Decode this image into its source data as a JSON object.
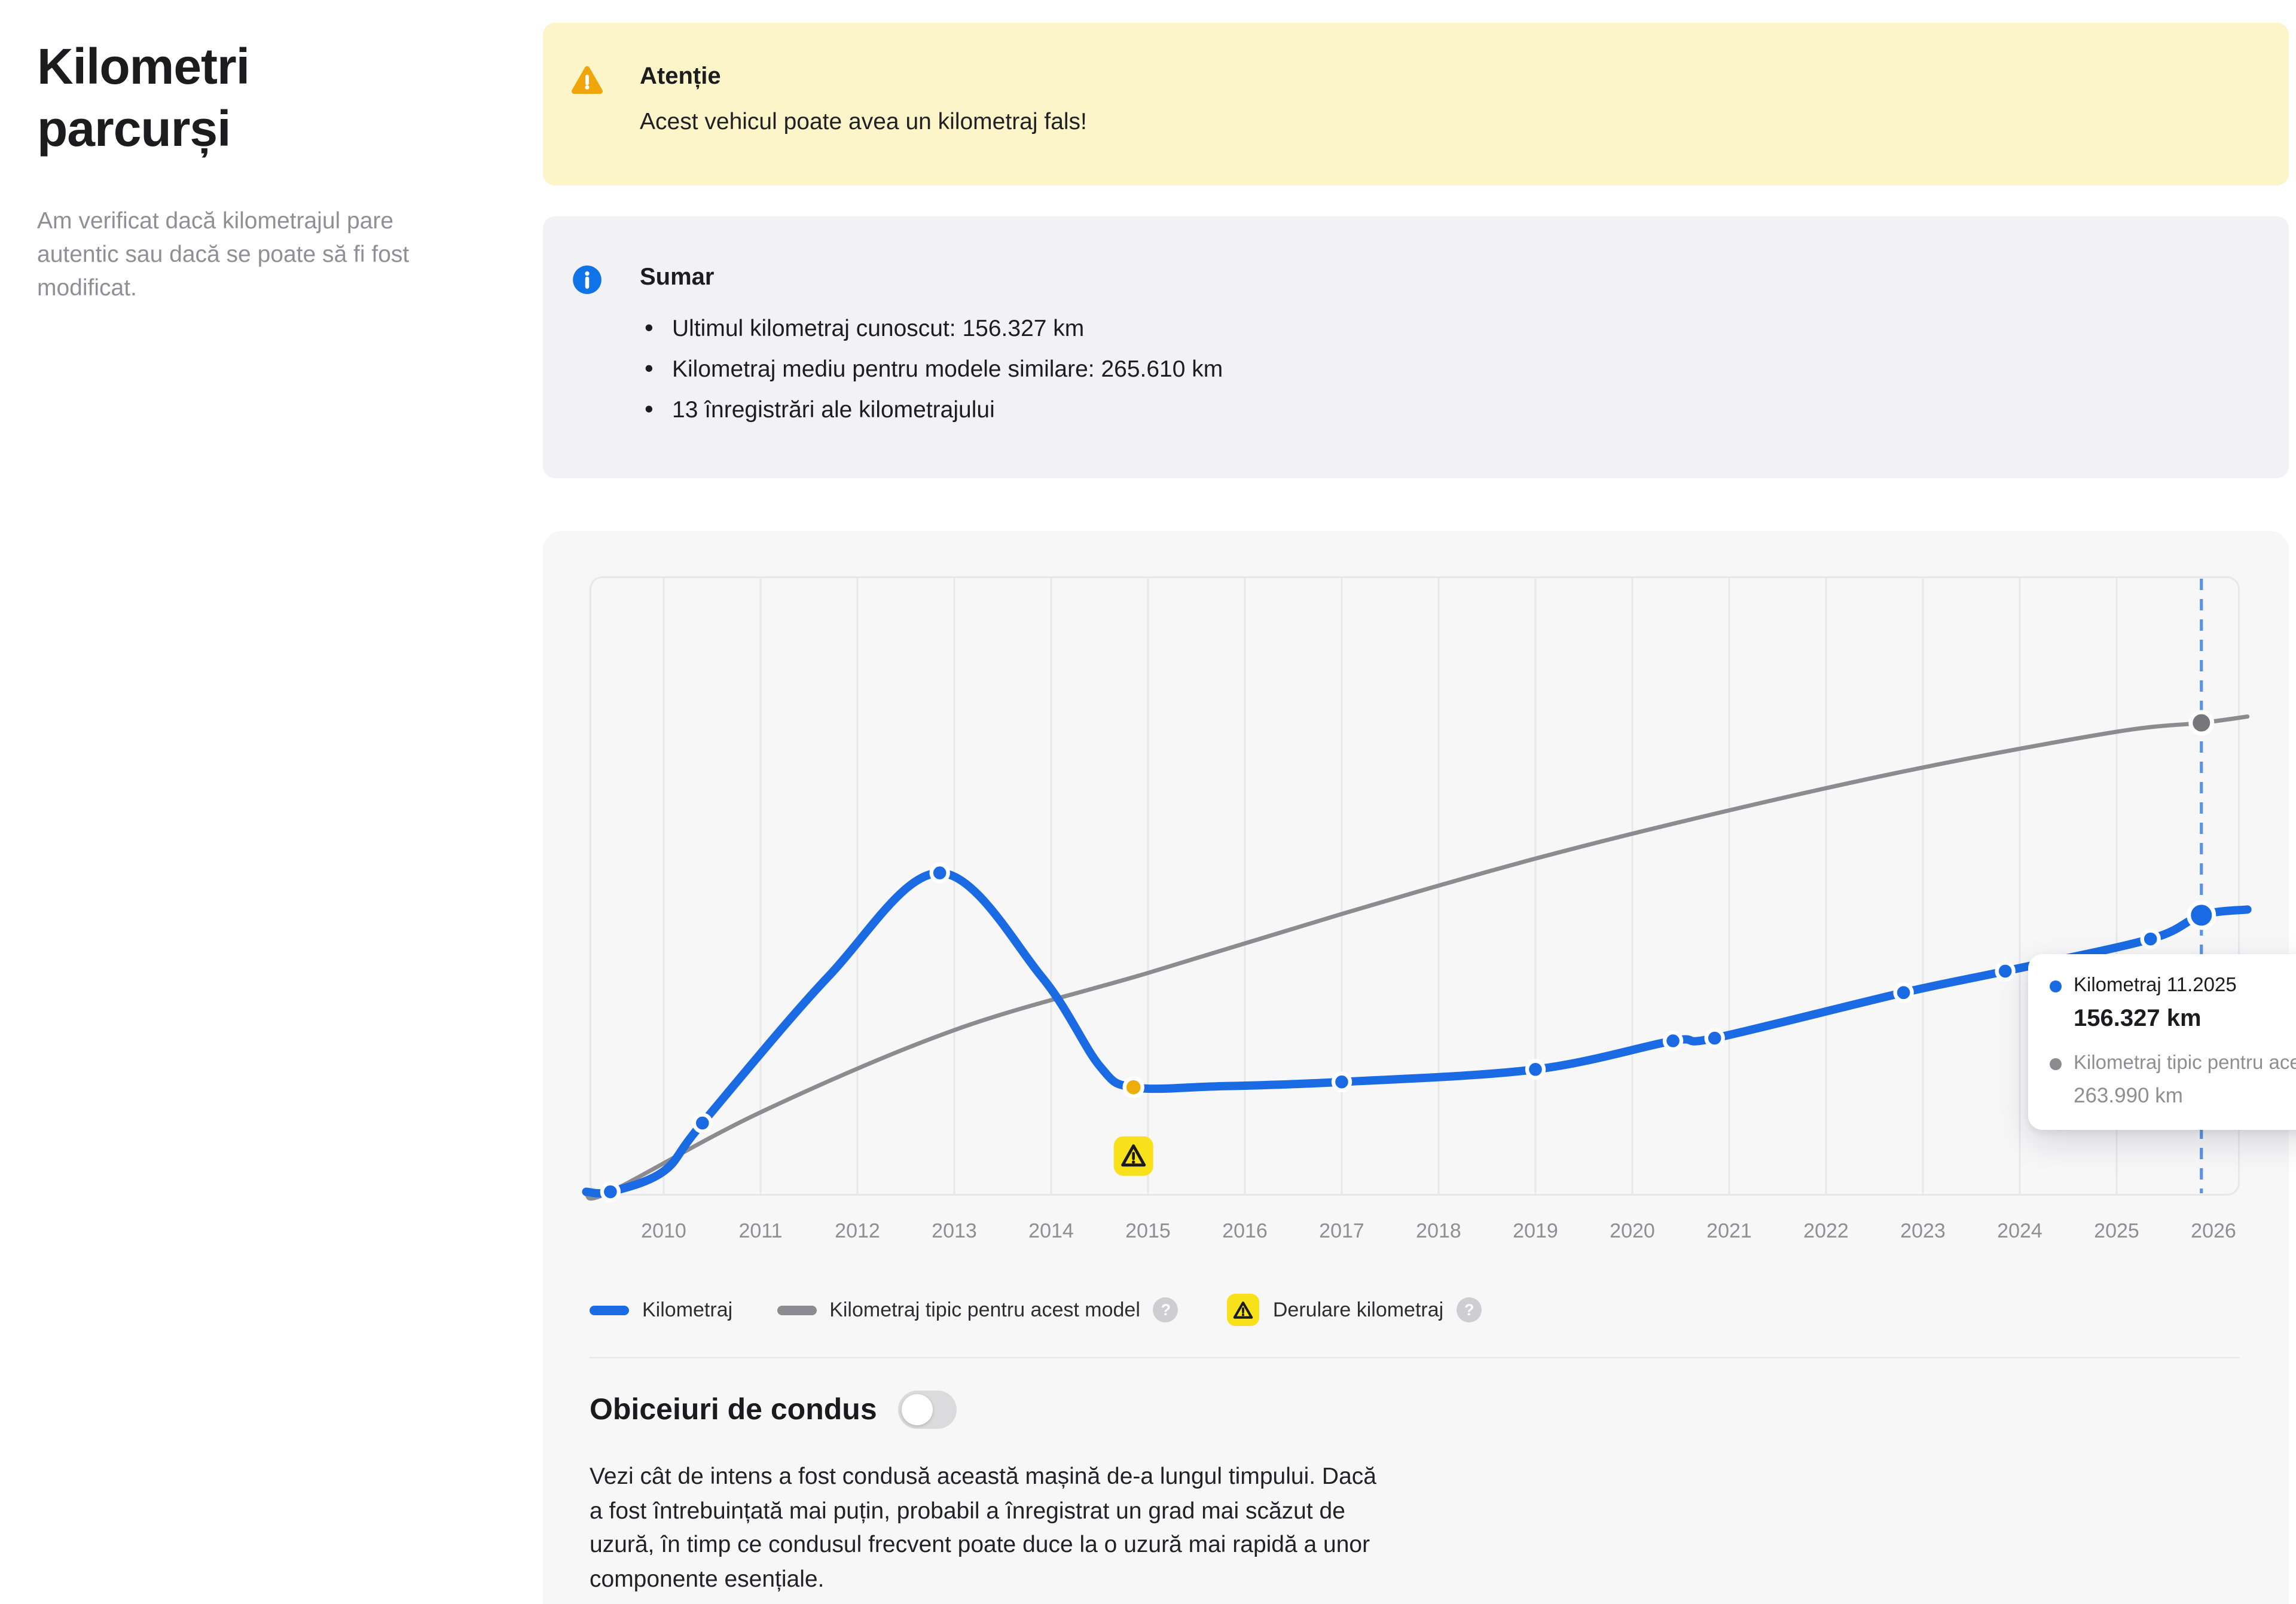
{
  "page": {
    "title": "Kilometri parcurși",
    "description": "Am verificat dacă kilometrajul pare autentic sau dacă se poate să fi fost modificat."
  },
  "alert": {
    "icon": "warning-triangle-icon",
    "title": "Atenție",
    "message": "Acest vehicul poate avea un kilometraj fals!"
  },
  "summary": {
    "icon": "info-circle-icon",
    "title": "Sumar",
    "items": [
      "Ultimul kilometraj cunoscut: 156.327 km",
      "Kilometraj mediu pentru modele similare: 265.610 km",
      "13 înregistrări ale kilometrajului"
    ]
  },
  "chart_data": {
    "type": "line",
    "title": "",
    "xlabel": "",
    "ylabel": "",
    "x_ticks": [
      2010,
      2011,
      2012,
      2013,
      2014,
      2015,
      2016,
      2017,
      2018,
      2019,
      2020,
      2021,
      2022,
      2023,
      2024,
      2025,
      2026
    ],
    "ylim": [
      0,
      346000
    ],
    "grid": "vertical-yearly",
    "legend_position": "bottom",
    "records_count": 13,
    "colors": {
      "blue": "#1a6be3",
      "gray": "#8c8c90",
      "grayDot": "#76767b",
      "dashed": "#5b93e8",
      "grid": "#e8e8ea",
      "axis": "#8e8e93",
      "badge": "#f8e11a",
      "rollback": "#edae0a"
    },
    "series": [
      {
        "name": "Kilometraj",
        "color": "#1a6be3",
        "width": 7,
        "points": [
          [
            2009.2,
            1500
          ],
          [
            2009.45,
            1500
          ],
          [
            2010.0,
            13000
          ],
          [
            2010.4,
            40000
          ],
          [
            2011.7,
            122000
          ],
          [
            2012.85,
            180000
          ],
          [
            2013.9,
            122000
          ],
          [
            2014.5,
            72000
          ],
          [
            2014.85,
            60000
          ],
          [
            2015.7,
            60500
          ],
          [
            2017.0,
            63000
          ],
          [
            2019.0,
            70000
          ],
          [
            2020.42,
            86000
          ],
          [
            2020.85,
            87500
          ],
          [
            2022.8,
            113000
          ],
          [
            2023.85,
            125000
          ],
          [
            2025.35,
            143000
          ],
          [
            2025.875,
            156327
          ],
          [
            2026.35,
            159500
          ]
        ]
      },
      {
        "name": "Kilometraj tipic pentru acest model",
        "color": "#8c8c90",
        "width": 3.5,
        "points": [
          [
            2009.2,
            0
          ],
          [
            2009.45,
            1500
          ],
          [
            2011,
            46000
          ],
          [
            2013,
            92000
          ],
          [
            2015,
            124000
          ],
          [
            2017,
            157000
          ],
          [
            2019,
            188000
          ],
          [
            2021,
            215000
          ],
          [
            2023,
            239000
          ],
          [
            2025,
            259000
          ],
          [
            2025.875,
            263990
          ],
          [
            2026.35,
            267500
          ]
        ]
      }
    ],
    "markers": [
      {
        "year": 2009.45,
        "km": 1500,
        "kind": "normal"
      },
      {
        "year": 2010.4,
        "km": 40000,
        "kind": "normal"
      },
      {
        "year": 2012.85,
        "km": 180000,
        "kind": "normal"
      },
      {
        "year": 2014.85,
        "km": 60000,
        "kind": "rollback"
      },
      {
        "year": 2017.0,
        "km": 63000,
        "kind": "normal"
      },
      {
        "year": 2019.0,
        "km": 70000,
        "kind": "normal"
      },
      {
        "year": 2020.42,
        "km": 86000,
        "kind": "normal"
      },
      {
        "year": 2020.85,
        "km": 87500,
        "kind": "normal"
      },
      {
        "year": 2022.8,
        "km": 113000,
        "kind": "normal"
      },
      {
        "year": 2023.85,
        "km": 125000,
        "kind": "normal"
      },
      {
        "year": 2025.35,
        "km": 143000,
        "kind": "normal"
      },
      {
        "year": 2025.875,
        "km": 156327,
        "kind": "current"
      },
      {
        "year": 2025.875,
        "km": 263990,
        "kind": "typical-end"
      }
    ],
    "rollback": {
      "year": 2014.85,
      "km": 60000,
      "icon": "warning-triangle-icon"
    },
    "current": {
      "year": 2025.875,
      "date_label": "11.2025"
    }
  },
  "tooltip": {
    "series1_dot": "blue-dot-icon",
    "series1_label": "Kilometraj 11.2025",
    "series1_value": "156.327 km",
    "series2_dot": "gray-dot-icon",
    "series2_label": "Kilometraj tipic pentru acest model",
    "series2_value": "263.990 km"
  },
  "legend": {
    "kilometraj": "Kilometraj",
    "tipic": "Kilometraj tipic pentru acest model",
    "derulare": "Derulare kilometraj",
    "help_icon": "question-mark-icon",
    "derulare_icon": "warning-triangle-icon"
  },
  "habits": {
    "title": "Obiceiuri de condus",
    "toggle_state": "off",
    "description": "Vezi cât de intens a fost condusă această mașină de-a lungul timpului. Dacă a fost întrebuințată mai puțin, probabil a înregistrat un grad mai scăzut de uzură, în timp ce condusul frecvent poate duce la o uzură mai rapidă a unor componente esențiale."
  }
}
